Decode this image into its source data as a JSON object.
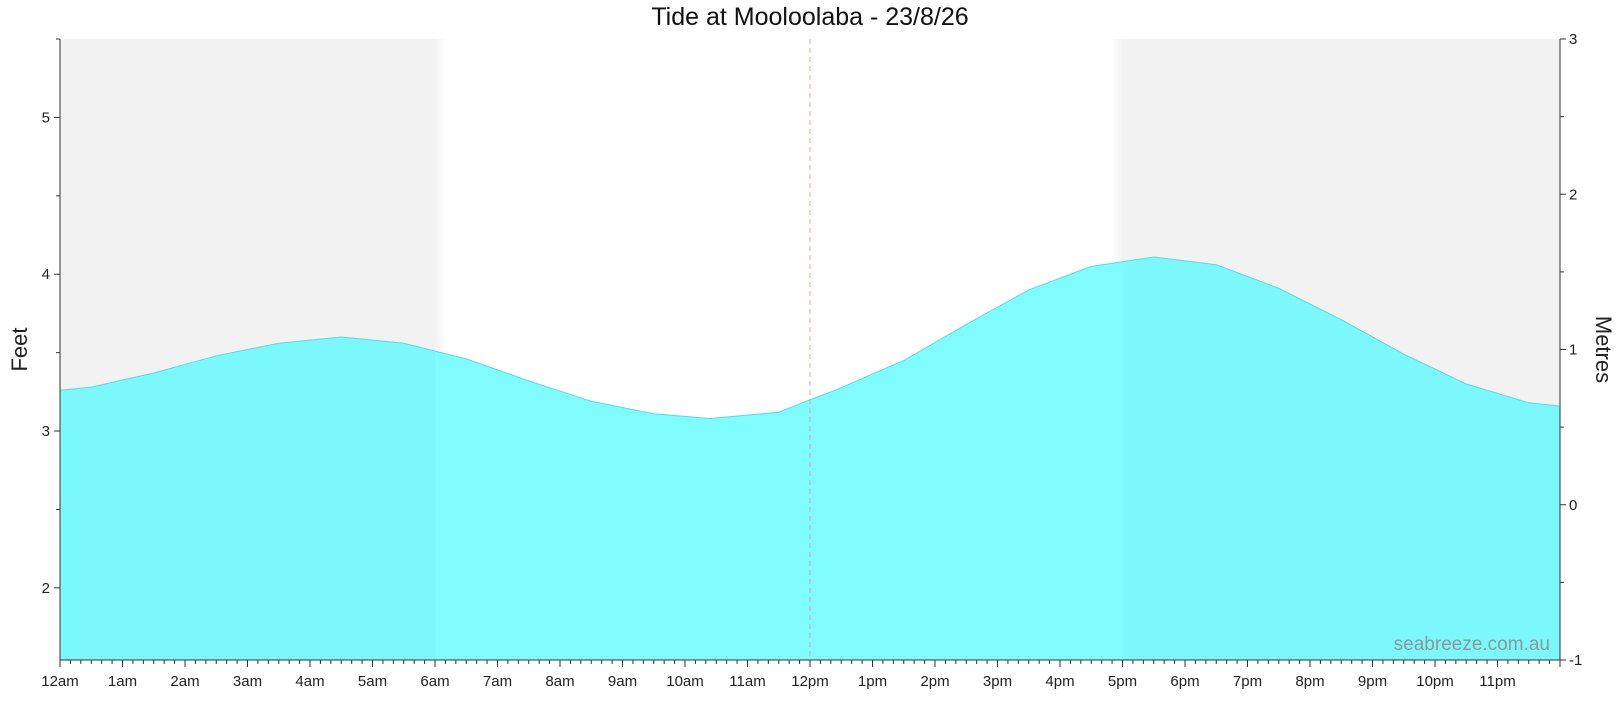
{
  "chart_data": {
    "type": "area",
    "title": "Tide at Mooloolaba - 23/8/26",
    "ylabel": "Feet",
    "y2label": "Metres",
    "watermark": "seabreeze.com.au",
    "x_unit": "hours",
    "xlim": [
      0,
      24
    ],
    "ylim": [
      1.54,
      5.5
    ],
    "y2lim": [
      -1,
      3
    ],
    "y_ticks": [
      2,
      3,
      4,
      5
    ],
    "y2_ticks": [
      -1,
      0,
      1,
      2,
      3
    ],
    "x_ticks": [
      {
        "x": 0,
        "label": "12am"
      },
      {
        "x": 1,
        "label": "1am"
      },
      {
        "x": 2,
        "label": "2am"
      },
      {
        "x": 3,
        "label": "3am"
      },
      {
        "x": 4,
        "label": "4am"
      },
      {
        "x": 5,
        "label": "5am"
      },
      {
        "x": 6,
        "label": "6am"
      },
      {
        "x": 7,
        "label": "7am"
      },
      {
        "x": 8,
        "label": "8am"
      },
      {
        "x": 9,
        "label": "9am"
      },
      {
        "x": 10,
        "label": "10am"
      },
      {
        "x": 11,
        "label": "11am"
      },
      {
        "x": 12,
        "label": "12pm"
      },
      {
        "x": 13,
        "label": "1pm"
      },
      {
        "x": 14,
        "label": "2pm"
      },
      {
        "x": 15,
        "label": "3pm"
      },
      {
        "x": 16,
        "label": "4pm"
      },
      {
        "x": 17,
        "label": "5pm"
      },
      {
        "x": 18,
        "label": "6pm"
      },
      {
        "x": 19,
        "label": "7pm"
      },
      {
        "x": 20,
        "label": "8pm"
      },
      {
        "x": 21,
        "label": "9pm"
      },
      {
        "x": 22,
        "label": "10pm"
      },
      {
        "x": 23,
        "label": "11pm"
      }
    ],
    "series": [
      {
        "x": [
          0,
          0.5,
          1.5,
          2.5,
          3.5,
          4.5,
          5.5,
          6.5,
          7.5,
          8.5,
          9.5,
          10.4,
          11.5,
          12.0,
          12.4,
          13.5,
          14.5,
          15.5,
          16.5,
          17.5,
          18.5,
          19.5,
          20.5,
          21.5,
          22.5,
          23.5,
          24
        ],
        "y": [
          3.26,
          3.28,
          3.37,
          3.48,
          3.56,
          3.6,
          3.56,
          3.46,
          3.32,
          3.19,
          3.11,
          3.08,
          3.12,
          3.2,
          3.26,
          3.45,
          3.68,
          3.9,
          4.05,
          4.11,
          4.06,
          3.91,
          3.71,
          3.49,
          3.3,
          3.18,
          3.16
        ]
      }
    ],
    "shaded_ranges": [
      [
        0,
        6
      ],
      [
        17,
        24
      ]
    ],
    "current_time_x": 12,
    "colors": {
      "fill": "#7ffcff",
      "fill_night": "#7af8fb",
      "line": "#5fd8e0",
      "shade": "#f2f2f2",
      "marker": "#e8a0a0"
    }
  }
}
